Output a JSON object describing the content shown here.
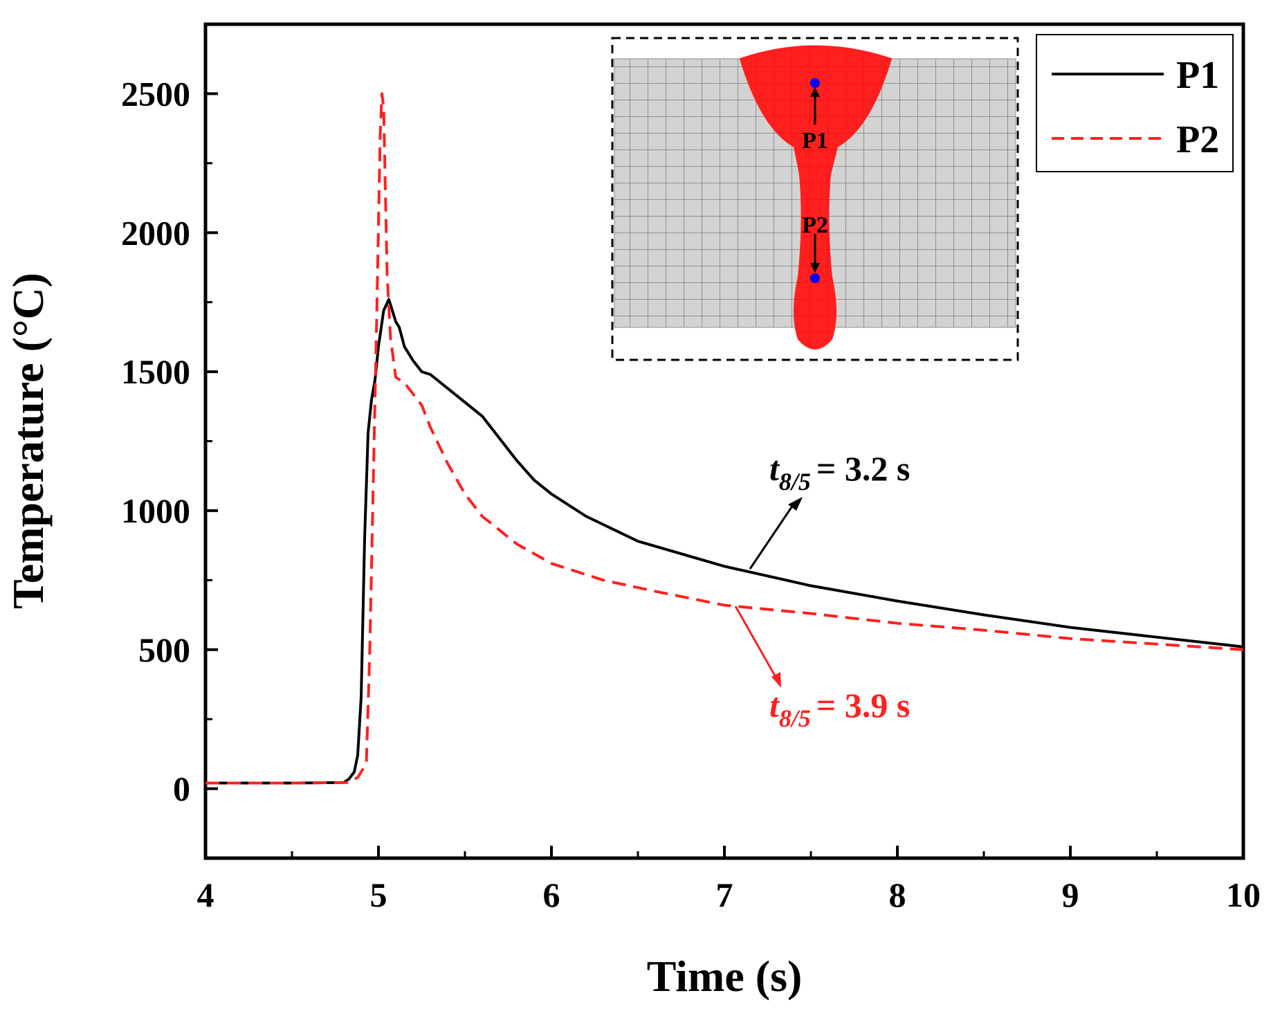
{
  "chart_data": {
    "type": "line",
    "title": "",
    "xlabel": "Time (s)",
    "ylabel": "Temperature (°C)",
    "xlim": [
      4,
      10
    ],
    "ylim": [
      -250,
      2750
    ],
    "xticks": [
      4,
      5,
      6,
      7,
      8,
      9,
      10
    ],
    "yticks": [
      0,
      500,
      1000,
      1500,
      2000,
      2500
    ],
    "xtick_labels": [
      "4",
      "5",
      "6",
      "7",
      "8",
      "9",
      "10"
    ],
    "ytick_labels": [
      "0",
      "500",
      "1000",
      "1500",
      "2000",
      "2500"
    ],
    "grid": false,
    "legend_position": "top-right",
    "series": [
      {
        "name": "P1",
        "color": "#000000",
        "style": "solid",
        "x": [
          4.0,
          4.5,
          4.8,
          4.83,
          4.86,
          4.88,
          4.9,
          4.92,
          4.94,
          4.96,
          4.98,
          5.0,
          5.03,
          5.06,
          5.08,
          5.1,
          5.12,
          5.15,
          5.2,
          5.25,
          5.3,
          5.4,
          5.5,
          5.6,
          5.7,
          5.8,
          5.9,
          6.0,
          6.2,
          6.5,
          7.0,
          7.5,
          8.0,
          8.5,
          9.0,
          9.5,
          10.0
        ],
        "values": [
          20,
          20,
          22,
          35,
          60,
          120,
          330,
          900,
          1280,
          1400,
          1470,
          1590,
          1720,
          1760,
          1720,
          1680,
          1660,
          1590,
          1540,
          1500,
          1490,
          1440,
          1390,
          1340,
          1260,
          1180,
          1110,
          1060,
          980,
          890,
          800,
          730,
          675,
          625,
          580,
          545,
          510
        ]
      },
      {
        "name": "P2",
        "color": "#ff2020",
        "style": "dashed",
        "x": [
          4.0,
          4.5,
          4.82,
          4.88,
          4.93,
          4.95,
          4.97,
          4.99,
          5.01,
          5.02,
          5.03,
          5.04,
          5.05,
          5.07,
          5.1,
          5.15,
          5.2,
          5.25,
          5.3,
          5.4,
          5.5,
          5.6,
          5.8,
          6.0,
          6.3,
          6.6,
          7.0,
          7.5,
          8.0,
          8.5,
          9.0,
          9.5,
          10.0
        ],
        "values": [
          20,
          20,
          22,
          40,
          90,
          500,
          1100,
          1700,
          2350,
          2500,
          2450,
          2150,
          1850,
          1620,
          1480,
          1460,
          1420,
          1380,
          1300,
          1170,
          1060,
          980,
          880,
          810,
          750,
          710,
          660,
          630,
          595,
          570,
          540,
          520,
          500
        ]
      }
    ],
    "annotations": [
      {
        "base": "t",
        "sub": "8/5",
        "value": "= 3.2 s",
        "color": "#000000",
        "series": "P1"
      },
      {
        "base": "t",
        "sub": "8/5",
        "value": "= 3.9 s",
        "color": "#ff2020",
        "series": "P2"
      }
    ],
    "inset": {
      "description_labels": [
        "P1",
        "P2"
      ],
      "weld_color": "#ff1f1f",
      "mesh_color": "#d3d3d3",
      "point_color": "#0000ff"
    }
  }
}
